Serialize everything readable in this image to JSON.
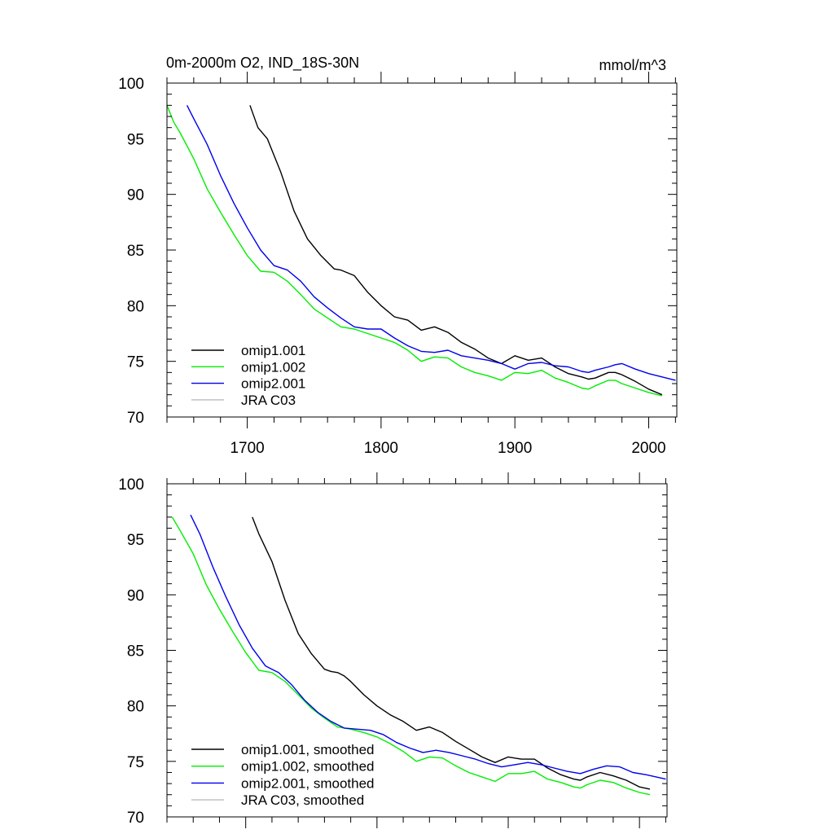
{
  "chart_data": [
    {
      "type": "line",
      "title": "0m-2000m O2, IND_18S-30N",
      "units": "mmol/m^3",
      "xlim": [
        1640,
        2021
      ],
      "ylim": [
        70,
        100
      ],
      "xticks": [
        1700,
        1800,
        1900,
        2000
      ],
      "yticks": [
        70,
        75,
        80,
        85,
        90,
        95,
        100
      ],
      "show_xtick_labels": true,
      "legend_position": "lower-left",
      "series": [
        {
          "name": "omip1.001",
          "color": "#000000",
          "x": [
            1702,
            1708,
            1715,
            1725,
            1735,
            1745,
            1755,
            1765,
            1770,
            1780,
            1790,
            1800,
            1810,
            1820,
            1830,
            1840,
            1850,
            1860,
            1870,
            1880,
            1890,
            1900,
            1910,
            1920,
            1930,
            1940,
            1950,
            1955,
            1960,
            1970,
            1975,
            1980,
            1990,
            2000,
            2010
          ],
          "y": [
            98,
            96,
            95,
            92,
            88.5,
            86,
            84.5,
            83.3,
            83.2,
            82.7,
            81.2,
            80,
            79,
            78.7,
            77.8,
            78.1,
            77.6,
            76.7,
            76.1,
            75.3,
            74.8,
            75.5,
            75.1,
            75.3,
            74.5,
            73.9,
            73.6,
            73.4,
            73.5,
            74.0,
            74.0,
            73.8,
            73.2,
            72.5,
            72.0
          ]
        },
        {
          "name": "omip1.002",
          "color": "#00ee00",
          "x": [
            1640,
            1645,
            1650,
            1660,
            1670,
            1680,
            1690,
            1700,
            1710,
            1720,
            1730,
            1740,
            1750,
            1760,
            1770,
            1780,
            1790,
            1800,
            1810,
            1820,
            1830,
            1840,
            1850,
            1860,
            1870,
            1880,
            1890,
            1900,
            1910,
            1920,
            1930,
            1940,
            1950,
            1955,
            1960,
            1970,
            1975,
            1980,
            1990,
            2000,
            2010
          ],
          "y": [
            98,
            96.5,
            95.5,
            93.2,
            90.5,
            88.4,
            86.4,
            84.5,
            83.1,
            83.0,
            82.2,
            81.0,
            79.7,
            78.9,
            78.1,
            77.9,
            77.5,
            77.1,
            76.7,
            76.0,
            75.0,
            75.4,
            75.3,
            74.5,
            74.0,
            73.7,
            73.3,
            74.0,
            73.9,
            74.2,
            73.5,
            73.1,
            72.6,
            72.5,
            72.8,
            73.3,
            73.3,
            73.0,
            72.6,
            72.2,
            71.9
          ]
        },
        {
          "name": "omip2.001",
          "color": "#0000ee",
          "x": [
            1655,
            1660,
            1670,
            1680,
            1690,
            1700,
            1710,
            1720,
            1730,
            1740,
            1750,
            1760,
            1770,
            1780,
            1790,
            1800,
            1810,
            1820,
            1830,
            1840,
            1850,
            1860,
            1870,
            1880,
            1890,
            1900,
            1910,
            1920,
            1930,
            1940,
            1950,
            1955,
            1960,
            1970,
            1975,
            1980,
            1990,
            2000,
            2010,
            2020
          ],
          "y": [
            98,
            96.8,
            94.5,
            91.7,
            89.2,
            87.0,
            85.0,
            83.6,
            83.2,
            82.2,
            80.8,
            79.8,
            78.9,
            78.1,
            77.9,
            77.9,
            77.1,
            76.4,
            75.9,
            75.8,
            76.0,
            75.5,
            75.3,
            75.1,
            74.8,
            74.3,
            74.8,
            74.9,
            74.6,
            74.5,
            74.1,
            74.0,
            74.2,
            74.5,
            74.7,
            74.8,
            74.3,
            73.9,
            73.6,
            73.3
          ]
        },
        {
          "name": "JRA C03",
          "color": "#bbbbbb",
          "x": [],
          "y": []
        }
      ]
    },
    {
      "type": "line",
      "title": "",
      "units": "",
      "xlim": [
        1640,
        2021
      ],
      "ylim": [
        70,
        100
      ],
      "xticks": [
        1700,
        1800,
        1900,
        2000
      ],
      "yticks": [
        70,
        75,
        80,
        85,
        90,
        95,
        100
      ],
      "show_xtick_labels": false,
      "legend_position": "lower-left",
      "series": [
        {
          "name": "omip1.001, smoothed",
          "color": "#000000",
          "x": [
            1705,
            1710,
            1720,
            1730,
            1740,
            1750,
            1760,
            1765,
            1770,
            1775,
            1780,
            1790,
            1800,
            1810,
            1820,
            1830,
            1840,
            1850,
            1860,
            1870,
            1880,
            1890,
            1900,
            1910,
            1920,
            1930,
            1940,
            1950,
            1955,
            1960,
            1970,
            1980,
            1990,
            2000,
            2008
          ],
          "y": [
            97,
            95.5,
            93,
            89.5,
            86.5,
            84.7,
            83.3,
            83.1,
            83.0,
            82.7,
            82.2,
            81.0,
            80.0,
            79.2,
            78.6,
            77.8,
            78.1,
            77.6,
            76.8,
            76.1,
            75.4,
            74.9,
            75.4,
            75.2,
            75.2,
            74.4,
            73.8,
            73.4,
            73.3,
            73.6,
            74.0,
            73.7,
            73.3,
            72.7,
            72.5
          ]
        },
        {
          "name": "omip1.002, smoothed",
          "color": "#00ee00",
          "x": [
            1644,
            1650,
            1660,
            1670,
            1680,
            1690,
            1700,
            1710,
            1720,
            1730,
            1740,
            1750,
            1760,
            1770,
            1780,
            1790,
            1800,
            1810,
            1820,
            1830,
            1840,
            1850,
            1860,
            1870,
            1880,
            1890,
            1900,
            1910,
            1920,
            1930,
            1940,
            1950,
            1955,
            1960,
            1970,
            1980,
            1990,
            2000,
            2008
          ],
          "y": [
            97,
            95.8,
            93.7,
            90.9,
            88.7,
            86.7,
            84.8,
            83.2,
            83.0,
            82.2,
            81.0,
            79.8,
            78.9,
            78.1,
            77.9,
            77.6,
            77.2,
            76.6,
            75.9,
            75.0,
            75.4,
            75.3,
            74.6,
            74.0,
            73.6,
            73.2,
            73.9,
            73.9,
            74.1,
            73.4,
            73.1,
            72.7,
            72.6,
            72.9,
            73.3,
            73.1,
            72.6,
            72.2,
            72.0
          ]
        },
        {
          "name": "omip2.001, smoothed",
          "color": "#0000ee",
          "x": [
            1658,
            1665,
            1675,
            1685,
            1695,
            1705,
            1715,
            1720,
            1725,
            1735,
            1745,
            1755,
            1765,
            1775,
            1785,
            1795,
            1805,
            1815,
            1825,
            1835,
            1845,
            1855,
            1865,
            1875,
            1885,
            1895,
            1905,
            1915,
            1925,
            1935,
            1945,
            1955,
            1965,
            1975,
            1985,
            1995,
            2005,
            2020
          ],
          "y": [
            97.2,
            95.5,
            92.5,
            89.8,
            87.3,
            85.2,
            83.6,
            83.3,
            83.0,
            81.9,
            80.5,
            79.4,
            78.6,
            78.0,
            77.9,
            77.8,
            77.4,
            76.7,
            76.2,
            75.8,
            76.0,
            75.8,
            75.5,
            75.2,
            74.8,
            74.5,
            74.7,
            74.9,
            74.7,
            74.4,
            74.1,
            73.9,
            74.3,
            74.6,
            74.5,
            74.0,
            73.8,
            73.4
          ]
        },
        {
          "name": "JRA C03, smoothed",
          "color": "#bbbbbb",
          "x": [],
          "y": []
        }
      ]
    }
  ]
}
